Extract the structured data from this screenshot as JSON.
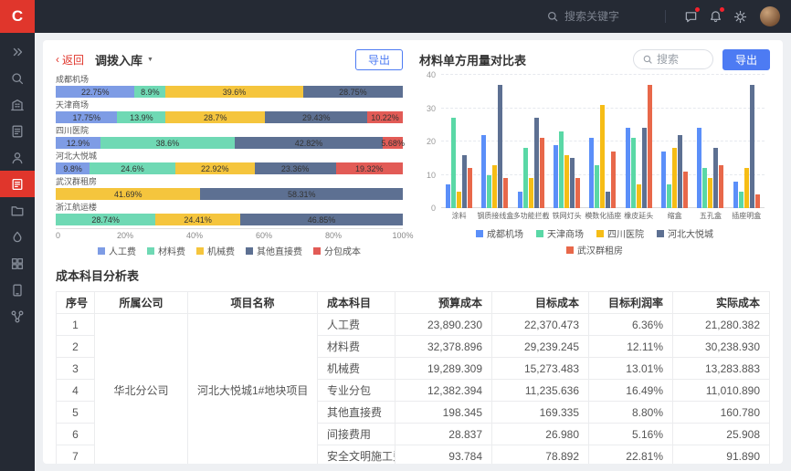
{
  "topbar": {
    "logo_text": "C",
    "search_placeholder": "搜索关键字"
  },
  "sidebar": {
    "items": [
      {
        "icon": "expand-icon",
        "active": false
      },
      {
        "icon": "search-icon",
        "active": false
      },
      {
        "icon": "building-icon",
        "active": false
      },
      {
        "icon": "report-icon",
        "active": false
      },
      {
        "icon": "user-icon",
        "active": false
      },
      {
        "icon": "inventory-icon",
        "active": true
      },
      {
        "icon": "folder-icon",
        "active": false
      },
      {
        "icon": "ink-icon",
        "active": false
      },
      {
        "icon": "package-icon",
        "active": false
      },
      {
        "icon": "device-icon",
        "active": false
      },
      {
        "icon": "flow-icon",
        "active": false
      }
    ]
  },
  "left_panel": {
    "back_label": "返回",
    "title": "调拨入库",
    "export_label": "导出"
  },
  "right_panel": {
    "title": "材料单方用量对比表",
    "search_placeholder": "搜索",
    "export_label": "导出"
  },
  "table": {
    "title": "成本科目分析表",
    "columns": [
      "序号",
      "所属公司",
      "项目名称",
      "成本科目",
      "预算成本",
      "目标成本",
      "目标利润率",
      "实际成本"
    ],
    "company": "华北分公司",
    "project": "河北大悦城1#地块项目",
    "rows": [
      {
        "no": "1",
        "subject": "人工费",
        "budget": "23,890.230",
        "target": "22,370.473",
        "margin": "6.36%",
        "actual": "21,280.382"
      },
      {
        "no": "2",
        "subject": "材料费",
        "budget": "32,378.896",
        "target": "29,239.245",
        "margin": "12.11%",
        "actual": "30,238.930"
      },
      {
        "no": "3",
        "subject": "机械费",
        "budget": "19,289.309",
        "target": "15,273.483",
        "margin": "13.01%",
        "actual": "13,283.883"
      },
      {
        "no": "4",
        "subject": "专业分包",
        "budget": "12,382.394",
        "target": "11,235.636",
        "margin": "16.49%",
        "actual": "11,010.890"
      },
      {
        "no": "5",
        "subject": "其他直接费",
        "budget": "198.345",
        "target": "169.335",
        "margin": "8.80%",
        "actual": "160.780"
      },
      {
        "no": "6",
        "subject": "间接费用",
        "budget": "28.837",
        "target": "26.980",
        "margin": "5.16%",
        "actual": "25.908"
      },
      {
        "no": "7",
        "subject": "安全文明施工费",
        "budget": "93.784",
        "target": "78.892",
        "margin": "22.81%",
        "actual": "91.890"
      }
    ]
  },
  "chart_data": [
    {
      "type": "bar",
      "variant": "horizontal-stacked-percent",
      "categories": [
        "成都机场",
        "天津商场",
        "四川医院",
        "河北大悦城",
        "武汉群租房",
        "浙江航运楼"
      ],
      "series": [
        {
          "name": "人工费",
          "color": "#7E9CE5",
          "values": [
            22.75,
            17.75,
            12.9,
            9.8,
            0,
            0
          ]
        },
        {
          "name": "材料费",
          "color": "#6FD9B4",
          "values": [
            8.9,
            13.9,
            38.6,
            24.6,
            0,
            28.74
          ]
        },
        {
          "name": "机械费",
          "color": "#F5C53D",
          "values": [
            39.6,
            28.7,
            0,
            22.92,
            41.69,
            24.41
          ]
        },
        {
          "name": "其他直接费",
          "color": "#5D7092",
          "values": [
            28.75,
            29.43,
            42.82,
            23.36,
            58.31,
            46.85
          ]
        },
        {
          "name": "分包成本",
          "color": "#E25B56",
          "values": [
            0,
            10.22,
            5.68,
            19.32,
            0,
            0
          ]
        }
      ],
      "xlim": [
        0,
        100
      ],
      "x_ticks": [
        "0",
        "20%",
        "40%",
        "60%",
        "80%",
        "100%"
      ],
      "legend_position": "bottom",
      "grid": false
    },
    {
      "type": "bar",
      "variant": "vertical-grouped",
      "title": "材料单方用量对比表",
      "categories": [
        "涂料",
        "钢质接线盒",
        "多功能拦截",
        "铁网灯头",
        "模数化插座",
        "橡皮延头",
        "缩盒",
        "五孔盒",
        "插座明盒"
      ],
      "series": [
        {
          "name": "成都机场",
          "color": "#5B8FF9",
          "values": [
            7,
            22,
            5,
            19,
            21,
            24,
            17,
            24,
            8
          ]
        },
        {
          "name": "天津商场",
          "color": "#5AD8A6",
          "values": [
            27,
            10,
            18,
            23,
            13,
            21,
            7,
            12,
            5
          ]
        },
        {
          "name": "四川医院",
          "color": "#F6BD16",
          "values": [
            5,
            13,
            9,
            16,
            31,
            7,
            18,
            9,
            12
          ]
        },
        {
          "name": "河北大悦城",
          "color": "#5D7092",
          "values": [
            16,
            37,
            27,
            15,
            5,
            24,
            22,
            18,
            37
          ]
        },
        {
          "name": "武汉群租房",
          "color": "#E8684A",
          "values": [
            12,
            9,
            21,
            9,
            17,
            37,
            11,
            13,
            4
          ]
        }
      ],
      "ylim": [
        0,
        40
      ],
      "y_ticks": [
        0,
        10,
        20,
        30,
        40
      ],
      "legend_position": "bottom",
      "grid": true
    }
  ]
}
